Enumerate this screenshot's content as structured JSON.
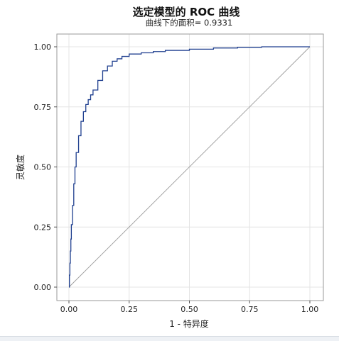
{
  "chart_data": {
    "type": "line",
    "title": "选定模型的 ROC 曲线",
    "subtitle": "曲线下的面积= 0.9331",
    "xlabel": "1 - 特异度",
    "ylabel": "灵敏度",
    "xlim": [
      0,
      1
    ],
    "ylim": [
      0,
      1
    ],
    "xticks": [
      "0.00",
      "0.25",
      "0.50",
      "0.75",
      "1.00"
    ],
    "yticks": [
      "0.00",
      "0.25",
      "0.50",
      "0.75",
      "1.00"
    ],
    "grid": true,
    "colors": {
      "roc": "#1f3f8f",
      "reference": "#9a9a9a"
    },
    "series": [
      {
        "x": [
          0,
          0.002,
          0.004,
          0.006,
          0.008,
          0.01,
          0.015,
          0.02,
          0.025,
          0.03,
          0.04,
          0.05,
          0.06,
          0.07,
          0.08,
          0.09,
          0.1,
          0.12,
          0.14,
          0.16,
          0.18,
          0.2,
          0.22,
          0.25,
          0.3,
          0.35,
          0.4,
          0.5,
          0.6,
          0.7,
          0.8,
          0.9,
          1.0
        ],
        "y": [
          0,
          0.05,
          0.1,
          0.15,
          0.2,
          0.26,
          0.34,
          0.43,
          0.5,
          0.56,
          0.63,
          0.69,
          0.73,
          0.76,
          0.78,
          0.8,
          0.82,
          0.86,
          0.9,
          0.92,
          0.94,
          0.95,
          0.96,
          0.97,
          0.975,
          0.98,
          0.985,
          0.99,
          0.995,
          0.998,
          1.0,
          1.0,
          1.0
        ]
      },
      {
        "x": [
          0,
          1
        ],
        "y": [
          0,
          1
        ]
      }
    ]
  }
}
